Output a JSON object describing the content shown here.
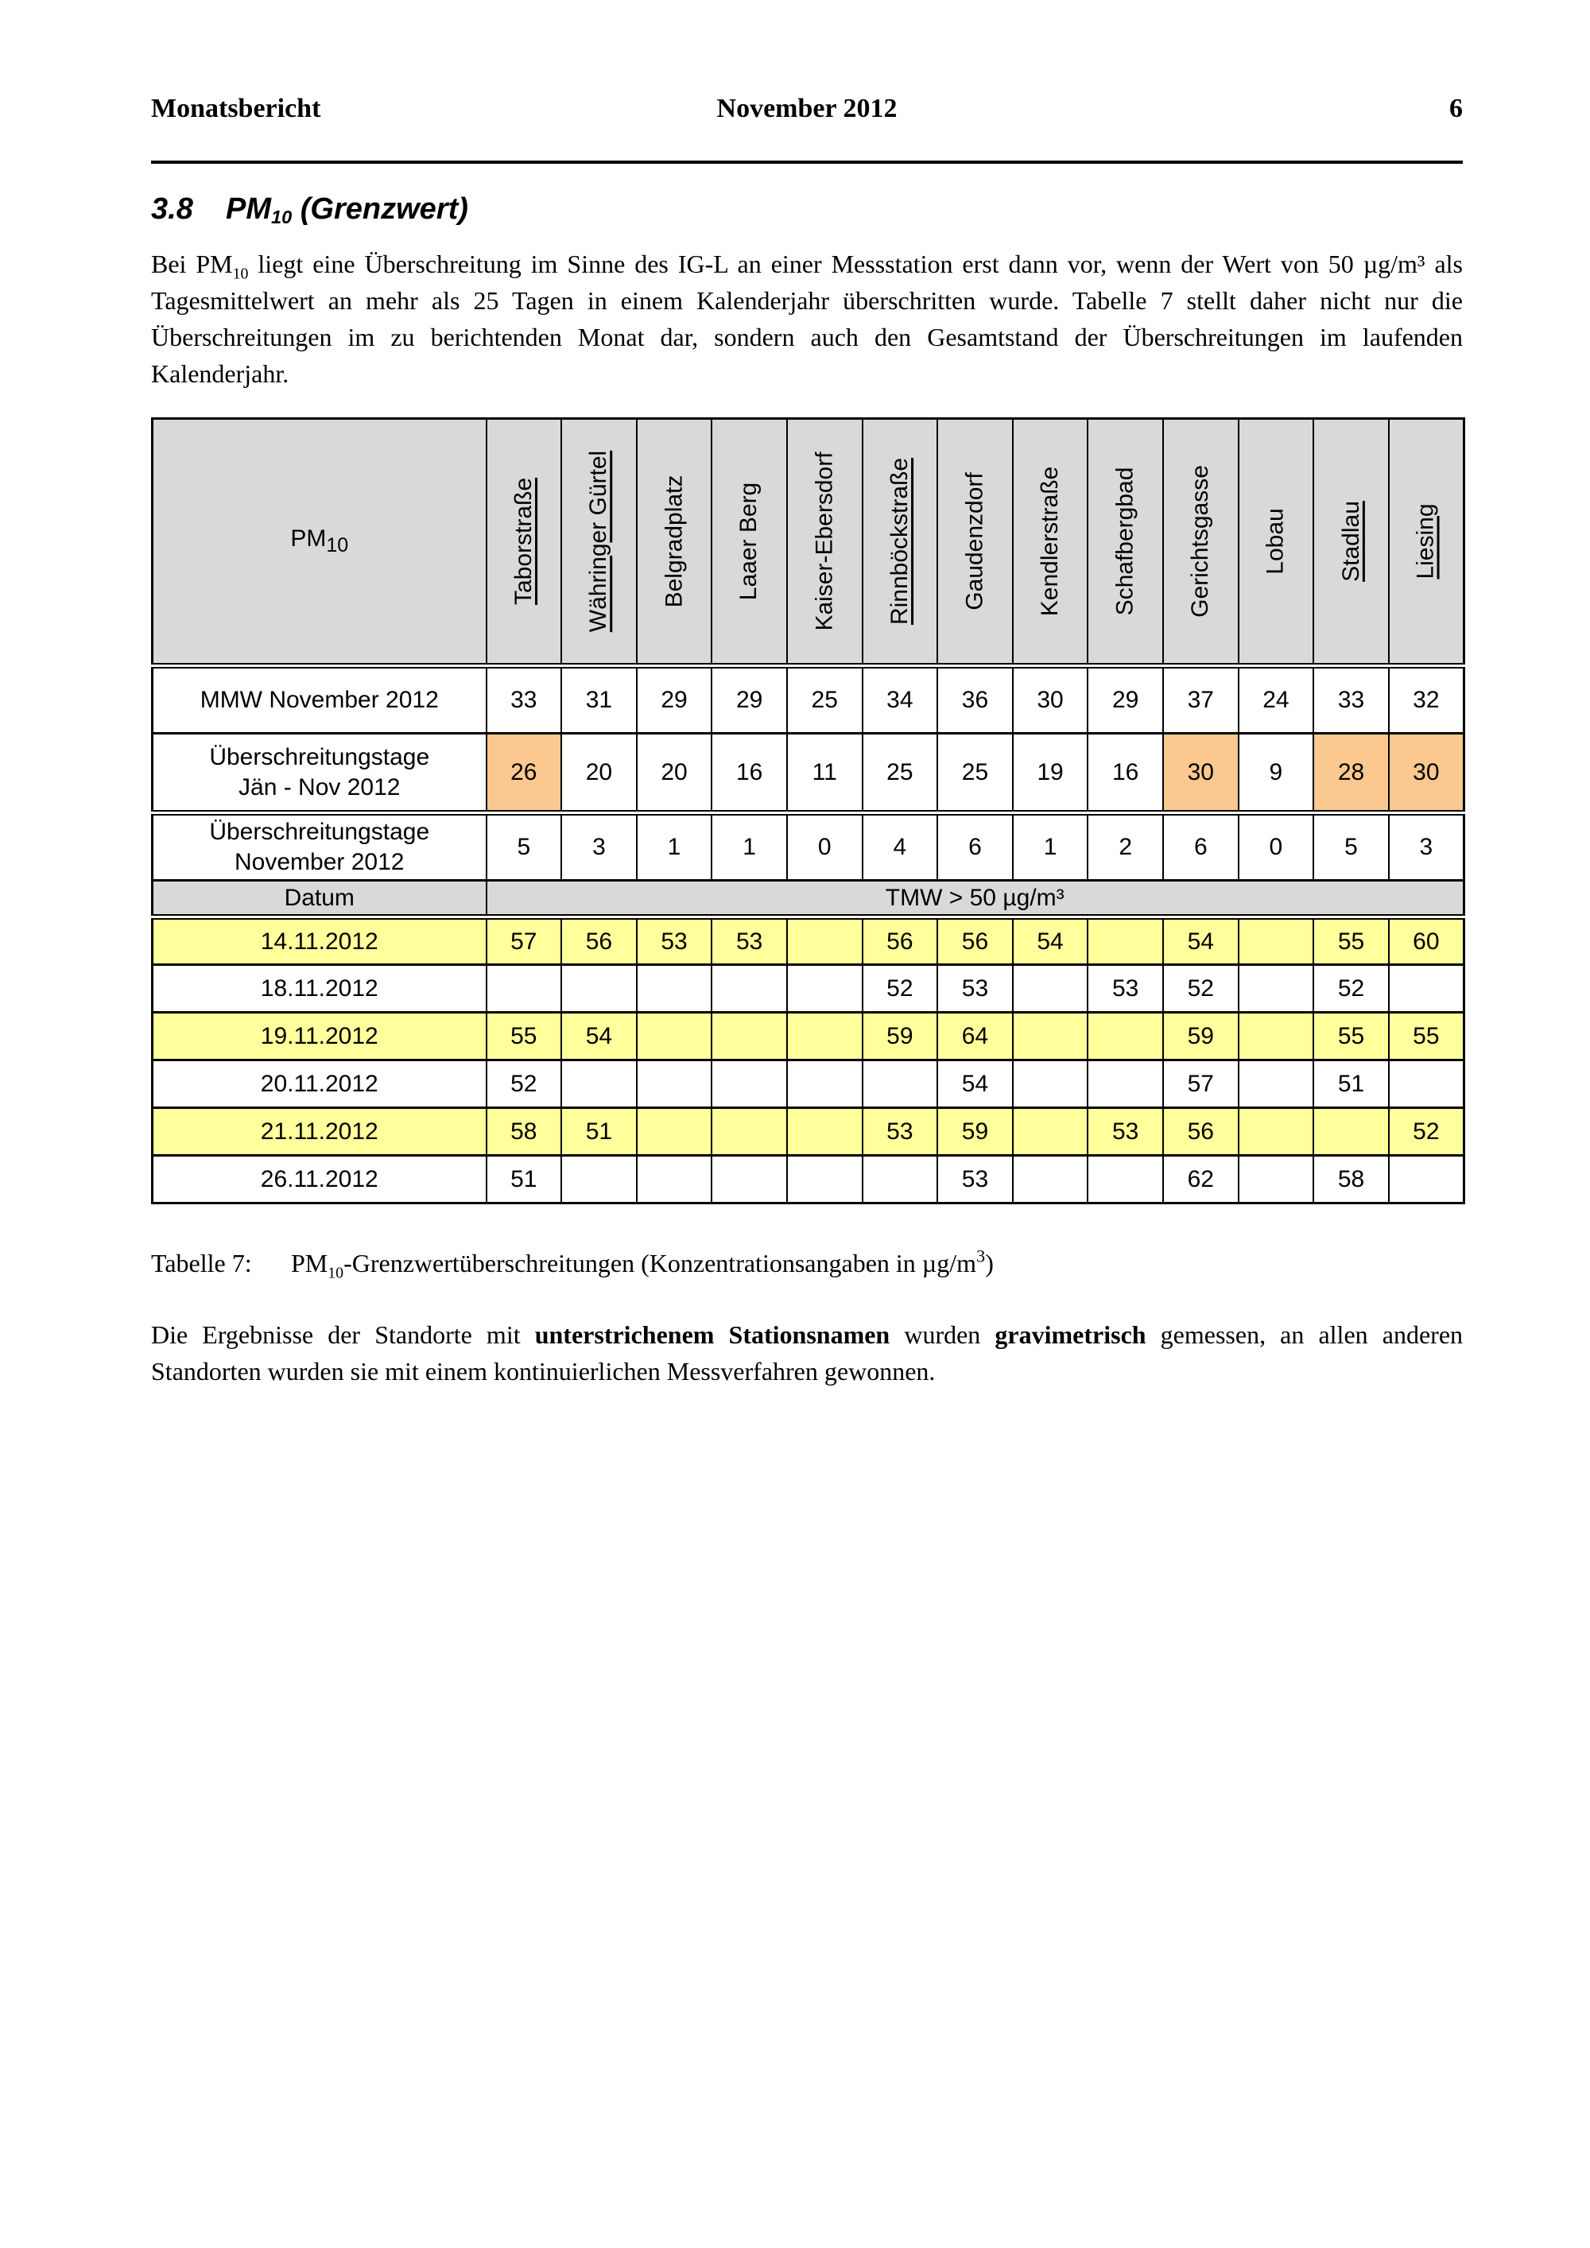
{
  "page": {
    "header_left": "Monatsbericht",
    "header_center": "November 2012",
    "page_number": "6"
  },
  "section": {
    "number": "3.8",
    "title_main": "PM",
    "title_sub": "10",
    "title_tail": " (Grenzwert)"
  },
  "intro": {
    "seg1": "Bei PM",
    "seg1_sub": "10",
    "seg2": " liegt eine Überschreitung im Sinne des IG-L an einer Messstation erst dann vor, wenn der Wert von 50 µg/m³ als Tagesmittelwert an mehr als 25 Tagen in einem Kalenderjahr überschritten wurde. Tabelle 7 stellt daher nicht nur die Überschreitungen im zu berichtenden Monat dar, sondern auch den Gesamtstand der Überschreitungen im laufenden Kalenderjahr."
  },
  "table": {
    "corner_label_main": "PM",
    "corner_label_sub": "10",
    "stations": [
      {
        "name": "Taborstraße",
        "underlined": true
      },
      {
        "name": "Währinger Gürtel",
        "underlined": true
      },
      {
        "name": "Belgradplatz",
        "underlined": false
      },
      {
        "name": "Laaer Berg",
        "underlined": false
      },
      {
        "name": "Kaiser-Ebersdorf",
        "underlined": false
      },
      {
        "name": "Rinnböckstraße",
        "underlined": true
      },
      {
        "name": "Gaudenzdorf",
        "underlined": false
      },
      {
        "name": "Kendlerstraße",
        "underlined": false
      },
      {
        "name": "Schafbergbad",
        "underlined": false
      },
      {
        "name": "Gerichtsgasse",
        "underlined": false
      },
      {
        "name": "Lobau",
        "underlined": false
      },
      {
        "name": "Stadlau",
        "underlined": true
      },
      {
        "name": "Liesing",
        "underlined": true
      }
    ],
    "summary_rows": [
      {
        "label_line1": "MMW November 2012",
        "label_line2": "",
        "values": [
          "33",
          "31",
          "29",
          "29",
          "25",
          "34",
          "36",
          "30",
          "29",
          "37",
          "24",
          "33",
          "32"
        ],
        "highlighted": [
          false,
          false,
          false,
          false,
          false,
          false,
          false,
          false,
          false,
          false,
          false,
          false,
          false
        ]
      },
      {
        "label_line1": "Überschreitungstage",
        "label_line2": "Jän - Nov 2012",
        "values": [
          "26",
          "20",
          "20",
          "16",
          "11",
          "25",
          "25",
          "19",
          "16",
          "30",
          "9",
          "28",
          "30"
        ],
        "highlighted": [
          true,
          false,
          false,
          false,
          false,
          false,
          false,
          false,
          false,
          true,
          false,
          true,
          true
        ]
      },
      {
        "label_line1": "Überschreitungstage",
        "label_line2": "November 2012",
        "values": [
          "5",
          "3",
          "1",
          "1",
          "0",
          "4",
          "6",
          "1",
          "2",
          "6",
          "0",
          "5",
          "3"
        ],
        "highlighted": [
          false,
          false,
          false,
          false,
          false,
          false,
          false,
          false,
          false,
          false,
          false,
          false,
          false
        ]
      }
    ],
    "datum_row": {
      "label": "Datum",
      "merged_label": "TMW > 50 µg/m³"
    },
    "date_rows": [
      {
        "date": "14.11.2012",
        "highlight": true,
        "values": [
          "57",
          "56",
          "53",
          "53",
          "",
          "56",
          "56",
          "54",
          "",
          "54",
          "",
          "55",
          "60"
        ]
      },
      {
        "date": "18.11.2012",
        "highlight": false,
        "values": [
          "",
          "",
          "",
          "",
          "",
          "52",
          "53",
          "",
          "53",
          "52",
          "",
          "52",
          ""
        ]
      },
      {
        "date": "19.11.2012",
        "highlight": true,
        "values": [
          "55",
          "54",
          "",
          "",
          "",
          "59",
          "64",
          "",
          "",
          "59",
          "",
          "55",
          "55"
        ]
      },
      {
        "date": "20.11.2012",
        "highlight": false,
        "values": [
          "52",
          "",
          "",
          "",
          "",
          "",
          "54",
          "",
          "",
          "57",
          "",
          "51",
          ""
        ]
      },
      {
        "date": "21.11.2012",
        "highlight": true,
        "values": [
          "58",
          "51",
          "",
          "",
          "",
          "53",
          "59",
          "",
          "53",
          "56",
          "",
          "",
          "52"
        ]
      },
      {
        "date": "26.11.2012",
        "highlight": false,
        "values": [
          "51",
          "",
          "",
          "",
          "",
          "",
          "53",
          "",
          "",
          "62",
          "",
          "58",
          ""
        ]
      }
    ],
    "colors": {
      "header_bg": "#d9d9d9",
      "highlight_orange": "#fbc88f",
      "highlight_yellow": "#ffff9b"
    }
  },
  "caption": {
    "prefix": "Tabelle 7:",
    "body": "PM",
    "body_sub": "10",
    "body_rest": "-Grenzwertüberschreitungen (Konzentrationsangaben in µg/m",
    "sup": "3",
    "close": ")"
  },
  "footnote": {
    "seg1": "Die Ergebnisse der Standorte mit ",
    "bold1": "unterstrichenem Stationsnamen",
    "seg2": " wurden ",
    "bold2": "gravimetrisch",
    "seg3": " gemessen, an allen anderen Standorten wurden sie mit einem kontinuierlichen Messverfahren gewonnen."
  }
}
